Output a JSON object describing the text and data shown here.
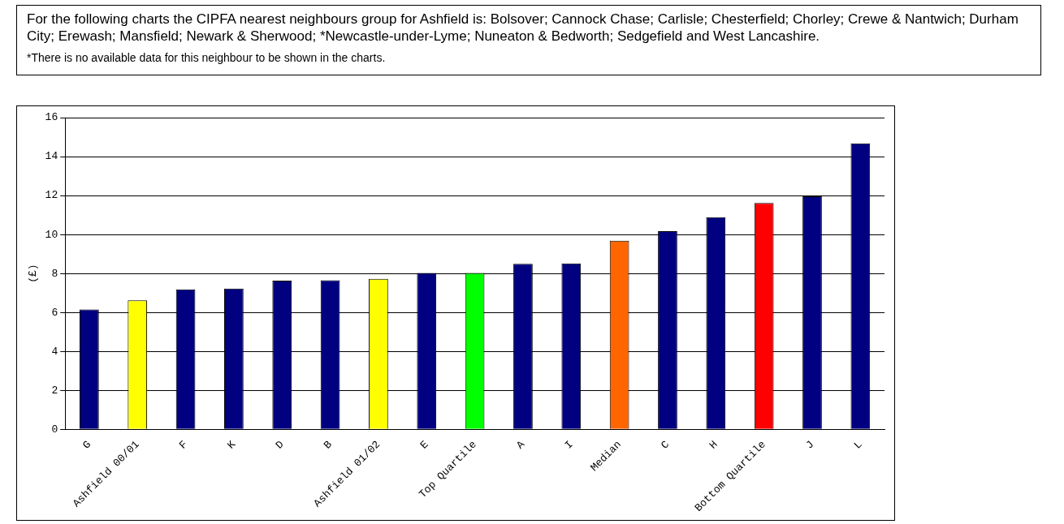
{
  "chart_data": {
    "type": "bar",
    "ylabel": "(£)",
    "categories": [
      "G",
      "Ashfield 00/01",
      "F",
      "K",
      "D",
      "B",
      "Ashfield 01/02",
      "E",
      "Top Quartile",
      "A",
      "I",
      "Median",
      "C",
      "H",
      "Bottom Quartile",
      "J",
      "L"
    ],
    "values": [
      6.15,
      6.62,
      7.18,
      7.22,
      7.63,
      7.65,
      7.72,
      8.03,
      8.03,
      8.49,
      8.51,
      9.68,
      10.17,
      10.89,
      11.62,
      11.96,
      14.68
    ],
    "colors": [
      "#000080",
      "#ffff00",
      "#000080",
      "#000080",
      "#000080",
      "#000080",
      "#ffff00",
      "#000080",
      "#00ff00",
      "#000080",
      "#000080",
      "#ff6600",
      "#000080",
      "#000080",
      "#ff0000",
      "#000080",
      "#000080"
    ],
    "ylim": [
      0,
      16
    ],
    "yticks": [
      0,
      2,
      4,
      6,
      8,
      10,
      12,
      14,
      16
    ],
    "grid": "y",
    "legend": false,
    "annotations": [
      "For the following charts the CIPFA nearest neighbours group for Ashfield is: Bolsover; Cannock Chase; Carlisle; Chesterfield; Chorley; Crewe & Nantwich; Durham City; Erewash; Mansfield; Newark & Sherwood; *Newcastle-under-Lyme; Nuneaton & Bedworth; Sedgefield and West Lancashire.",
      "*There is no available data for this neighbour to be shown in the charts."
    ]
  }
}
